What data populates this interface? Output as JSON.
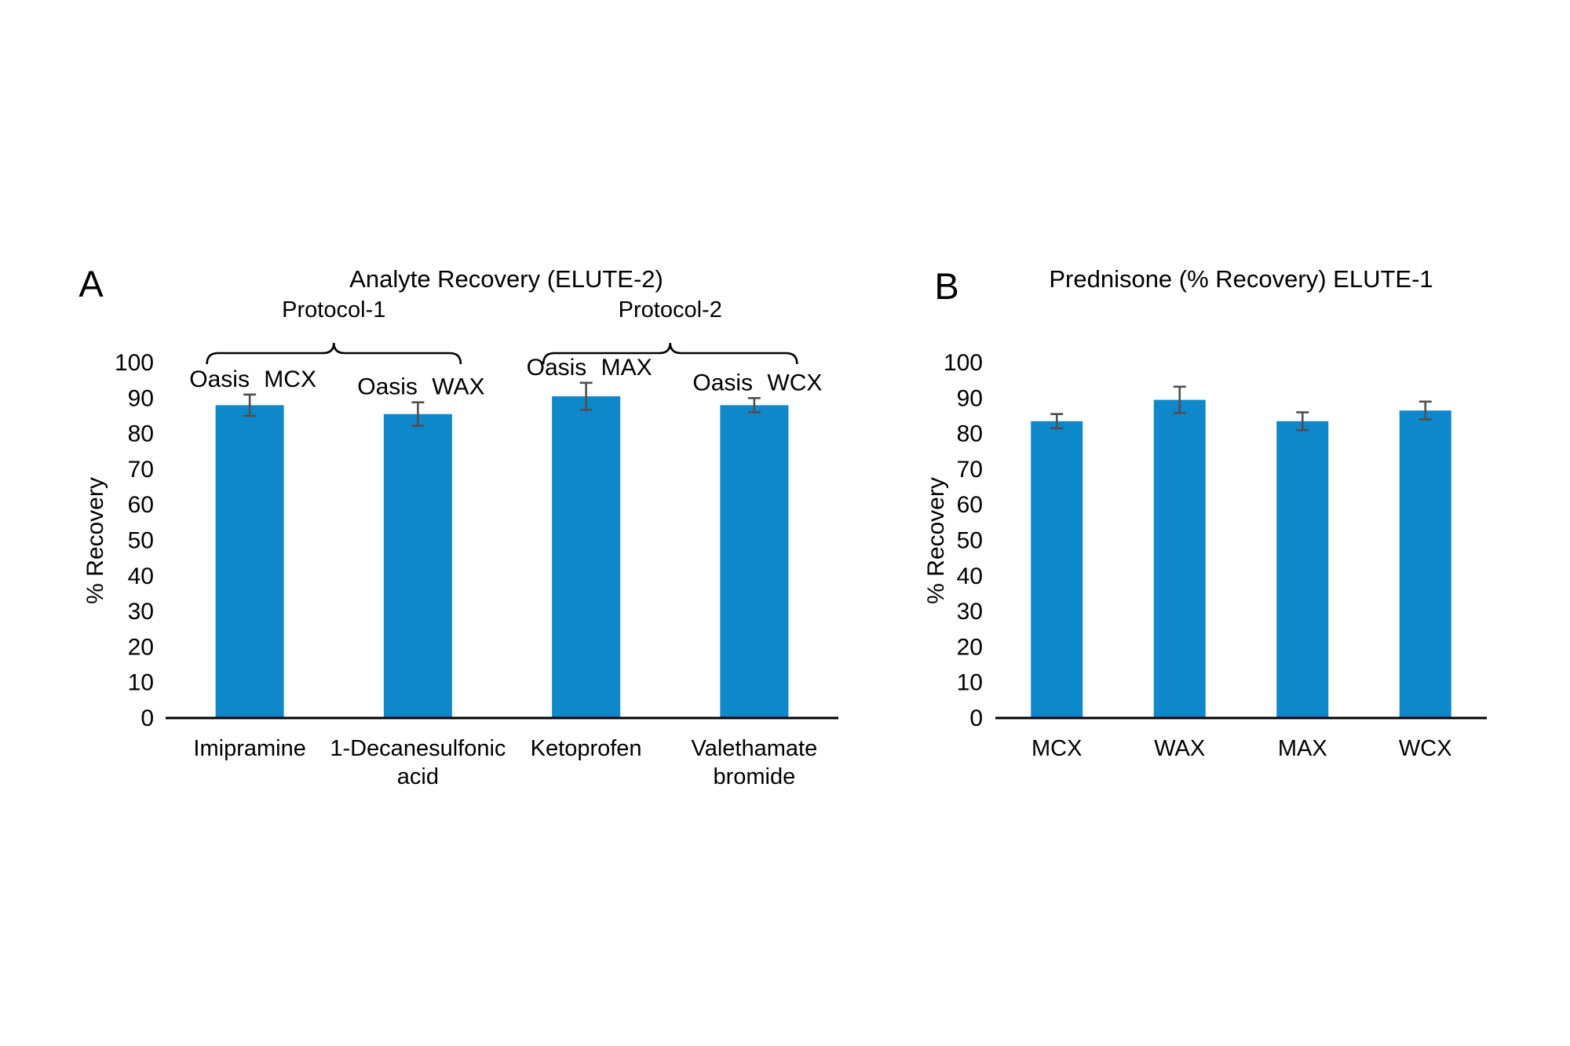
{
  "figure": {
    "background": "#ffffff",
    "bar_color": "#0e87cb",
    "error_color": "#4f4f4f",
    "axis_color": "#000000"
  },
  "chart_data": [
    {
      "panel_label": "A",
      "type": "bar",
      "title": "Analyte Recovery (ELUTE-2)",
      "xlabel": "",
      "ylabel": "% Recovery",
      "ylim": [
        0,
        100
      ],
      "ytick_step": 10,
      "grid": false,
      "legend": "none",
      "categories": [
        "Imipramine",
        "1-Decanesulfonic acid",
        "Ketoprofen",
        "Valethamate bromide"
      ],
      "values": [
        88,
        85.5,
        90.5,
        88
      ],
      "error_bars": [
        3,
        3.3,
        3.8,
        2
      ],
      "bar_labels": [
        "Oasis MCX",
        "Oasis WAX",
        "Oasis MAX",
        "Oasis WCX"
      ],
      "group_brackets": [
        {
          "label": "Protocol-1",
          "from": 0,
          "to": 1
        },
        {
          "label": "Protocol-2",
          "from": 2,
          "to": 3
        }
      ]
    },
    {
      "panel_label": "B",
      "type": "bar",
      "title": "Prednisone (% Recovery) ELUTE-1",
      "xlabel": "",
      "ylabel": "% Recovery",
      "ylim": [
        0,
        100
      ],
      "ytick_step": 10,
      "grid": false,
      "legend": "none",
      "categories": [
        "MCX",
        "WAX",
        "MAX",
        "WCX"
      ],
      "values": [
        83.5,
        89.5,
        83.5,
        86.5
      ],
      "error_bars": [
        2,
        3.7,
        2.5,
        2.5
      ],
      "bar_labels": [],
      "group_brackets": []
    }
  ]
}
